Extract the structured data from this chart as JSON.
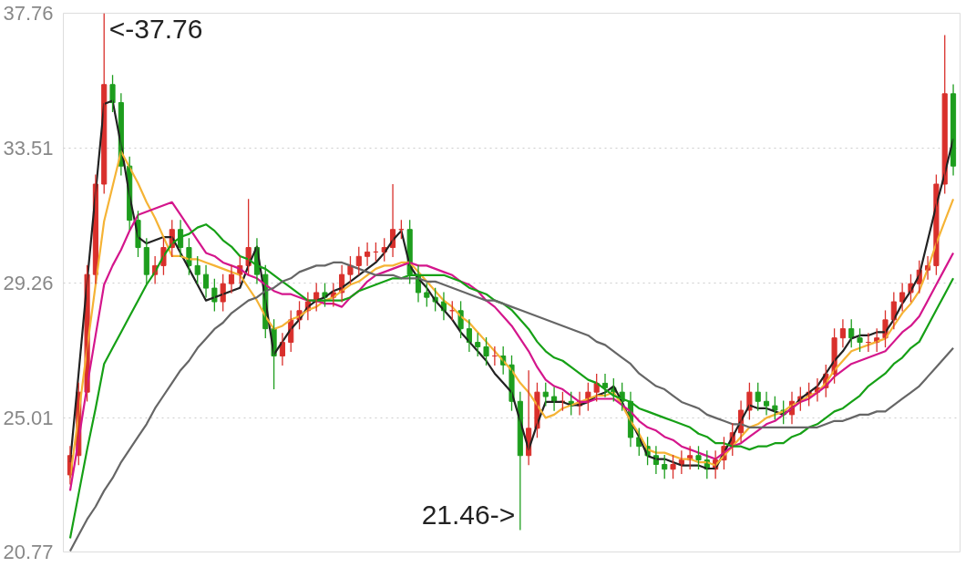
{
  "chart_data": {
    "type": "candlestick",
    "categories": [
      null,
      null,
      null,
      null,
      null,
      null,
      null,
      null,
      null,
      null,
      null,
      null,
      null,
      null,
      null,
      null,
      null,
      null,
      null,
      null,
      null,
      null,
      null,
      null,
      null,
      null,
      null,
      null,
      null,
      null,
      null,
      null,
      null,
      null,
      null,
      null,
      null,
      null,
      null,
      null,
      null,
      null,
      null,
      null,
      null,
      null,
      null,
      null,
      null,
      null,
      null,
      null,
      null,
      null,
      null,
      null,
      null,
      null,
      null,
      null,
      null,
      null,
      null,
      null,
      null,
      null,
      null,
      null,
      null,
      null,
      null,
      null,
      null,
      null,
      null,
      null,
      null,
      null,
      null,
      null,
      null,
      null,
      null,
      null,
      null,
      null,
      null,
      null,
      null,
      null,
      null,
      null,
      null,
      null,
      null,
      null,
      null,
      null,
      null,
      null,
      null,
      null,
      null,
      null,
      null
    ],
    "ohlc": [
      [
        23.2,
        24.11,
        22.9,
        23.81
      ],
      [
        23.81,
        26.11,
        23.51,
        25.81
      ],
      [
        25.81,
        29.82,
        25.51,
        29.52
      ],
      [
        29.52,
        32.67,
        29.22,
        32.37
      ],
      [
        32.37,
        37.76,
        32.07,
        35.51
      ],
      [
        35.51,
        35.81,
        34.64,
        34.94
      ],
      [
        34.94,
        35.24,
        32.64,
        32.94
      ],
      [
        32.94,
        33.24,
        30.93,
        31.23
      ],
      [
        31.23,
        31.53,
        30.07,
        30.37
      ],
      [
        30.37,
        30.67,
        29.22,
        29.52
      ],
      [
        29.52,
        30.1,
        29.22,
        29.8
      ],
      [
        29.8,
        30.67,
        29.5,
        30.37
      ],
      [
        30.37,
        31.24,
        30.07,
        30.94
      ],
      [
        30.94,
        31.24,
        30.07,
        30.37
      ],
      [
        30.37,
        30.67,
        29.5,
        29.8
      ],
      [
        29.8,
        30.1,
        29.22,
        29.52
      ],
      [
        29.52,
        29.82,
        28.79,
        29.09
      ],
      [
        29.09,
        29.39,
        28.36,
        28.66
      ],
      [
        28.66,
        29.53,
        28.36,
        29.23
      ],
      [
        29.23,
        29.82,
        28.93,
        29.52
      ],
      [
        29.52,
        30.1,
        29.22,
        29.8
      ],
      [
        29.8,
        31.9,
        29.5,
        30.37
      ],
      [
        30.37,
        30.67,
        29.22,
        29.52
      ],
      [
        29.52,
        29.82,
        27.51,
        27.81
      ],
      [
        27.81,
        28.11,
        25.9,
        26.95
      ],
      [
        26.95,
        27.68,
        26.65,
        27.38
      ],
      [
        27.38,
        28.39,
        27.08,
        28.09
      ],
      [
        28.09,
        28.68,
        27.79,
        28.38
      ],
      [
        28.38,
        28.96,
        28.08,
        28.66
      ],
      [
        28.66,
        29.25,
        28.36,
        28.95
      ],
      [
        28.95,
        29.25,
        28.5,
        28.8
      ],
      [
        28.8,
        29.25,
        28.5,
        28.95
      ],
      [
        28.95,
        29.82,
        28.65,
        29.52
      ],
      [
        29.52,
        30.1,
        29.22,
        29.8
      ],
      [
        29.8,
        30.39,
        29.5,
        30.09
      ],
      [
        30.09,
        30.53,
        29.79,
        30.23
      ],
      [
        30.23,
        30.53,
        29.93,
        30.23
      ],
      [
        30.23,
        30.67,
        29.93,
        30.37
      ],
      [
        30.37,
        32.37,
        30.07,
        30.94
      ],
      [
        30.94,
        31.24,
        30.64,
        30.94
      ],
      [
        30.94,
        31.24,
        29.22,
        29.52
      ],
      [
        29.52,
        29.82,
        28.65,
        28.95
      ],
      [
        28.95,
        29.25,
        28.5,
        28.8
      ],
      [
        28.8,
        29.1,
        28.36,
        28.66
      ],
      [
        28.66,
        28.96,
        28.08,
        28.38
      ],
      [
        28.38,
        28.68,
        28.08,
        28.38
      ],
      [
        28.38,
        28.68,
        27.51,
        27.81
      ],
      [
        27.81,
        28.11,
        27.08,
        27.38
      ],
      [
        27.38,
        27.68,
        26.94,
        27.24
      ],
      [
        27.24,
        27.54,
        26.65,
        26.95
      ],
      [
        26.95,
        27.25,
        26.65,
        26.95
      ],
      [
        26.95,
        27.25,
        26.37,
        26.67
      ],
      [
        26.67,
        26.97,
        25.22,
        25.52
      ],
      [
        25.52,
        25.82,
        21.46,
        23.81
      ],
      [
        23.81,
        26.5,
        23.51,
        24.67
      ],
      [
        24.67,
        26.11,
        24.37,
        25.81
      ],
      [
        25.81,
        26.11,
        25.37,
        25.67
      ],
      [
        25.67,
        25.97,
        25.22,
        25.52
      ],
      [
        25.52,
        25.82,
        25.22,
        25.52
      ],
      [
        25.52,
        25.82,
        25.08,
        25.38
      ],
      [
        25.38,
        25.82,
        25.08,
        25.52
      ],
      [
        25.52,
        26.11,
        25.22,
        25.81
      ],
      [
        25.81,
        26.39,
        25.51,
        26.09
      ],
      [
        26.09,
        26.39,
        25.65,
        25.95
      ],
      [
        25.95,
        26.25,
        25.51,
        25.81
      ],
      [
        25.81,
        26.11,
        25.22,
        25.52
      ],
      [
        25.52,
        25.82,
        24.08,
        24.38
      ],
      [
        24.38,
        24.68,
        23.8,
        24.1
      ],
      [
        24.1,
        24.4,
        23.51,
        23.81
      ],
      [
        23.81,
        24.11,
        23.23,
        23.53
      ],
      [
        23.53,
        23.83,
        23.08,
        23.38
      ],
      [
        23.38,
        23.83,
        23.08,
        23.53
      ],
      [
        23.53,
        23.97,
        23.23,
        23.67
      ],
      [
        23.67,
        24.11,
        23.37,
        23.81
      ],
      [
        23.81,
        24.11,
        23.37,
        23.67
      ],
      [
        23.67,
        23.97,
        23.08,
        23.38
      ],
      [
        23.38,
        23.97,
        23.08,
        23.67
      ],
      [
        23.67,
        24.4,
        23.37,
        24.1
      ],
      [
        24.1,
        24.83,
        23.8,
        24.53
      ],
      [
        24.53,
        25.54,
        24.23,
        25.24
      ],
      [
        25.24,
        26.11,
        24.94,
        25.81
      ],
      [
        25.81,
        26.11,
        25.22,
        25.52
      ],
      [
        25.52,
        25.82,
        25.08,
        25.38
      ],
      [
        25.38,
        25.68,
        24.94,
        25.24
      ],
      [
        25.24,
        25.54,
        24.8,
        25.1
      ],
      [
        25.1,
        25.82,
        24.8,
        25.52
      ],
      [
        25.52,
        25.97,
        25.22,
        25.67
      ],
      [
        25.67,
        26.11,
        25.37,
        25.81
      ],
      [
        25.81,
        26.25,
        25.51,
        25.95
      ],
      [
        25.95,
        26.68,
        25.65,
        26.38
      ],
      [
        26.38,
        27.82,
        26.08,
        27.52
      ],
      [
        27.52,
        28.11,
        27.22,
        27.81
      ],
      [
        27.81,
        28.11,
        27.22,
        27.52
      ],
      [
        27.52,
        27.82,
        27.08,
        27.38
      ],
      [
        27.38,
        27.68,
        27.08,
        27.38
      ],
      [
        27.38,
        27.82,
        27.08,
        27.52
      ],
      [
        27.52,
        28.39,
        27.22,
        28.09
      ],
      [
        28.09,
        28.96,
        27.79,
        28.66
      ],
      [
        28.66,
        29.25,
        28.36,
        28.95
      ],
      [
        28.95,
        29.53,
        28.65,
        29.23
      ],
      [
        29.23,
        29.96,
        28.93,
        29.66
      ],
      [
        29.66,
        30.1,
        29.36,
        29.8
      ],
      [
        29.8,
        32.67,
        29.5,
        32.37
      ],
      [
        32.37,
        37.07,
        32.07,
        35.22
      ],
      [
        35.22,
        35.52,
        32.64,
        32.94
      ]
    ],
    "colors": [
      "#d9302c",
      "#d9302c",
      "#d9302c",
      "#d9302c",
      "#d9302c",
      "#1e9e1e",
      "#1e9e1e",
      "#1e9e1e",
      "#1e9e1e",
      "#1e9e1e",
      "#d9302c",
      "#d9302c",
      "#d9302c",
      "#1e9e1e",
      "#1e9e1e",
      "#1e9e1e",
      "#1e9e1e",
      "#1e9e1e",
      "#d9302c",
      "#d9302c",
      "#d9302c",
      "#d9302c",
      "#1e9e1e",
      "#1e9e1e",
      "#1e9e1e",
      "#d9302c",
      "#d9302c",
      "#d9302c",
      "#d9302c",
      "#d9302c",
      "#1e9e1e",
      "#d9302c",
      "#d9302c",
      "#d9302c",
      "#d9302c",
      "#d9302c",
      "#d9302c",
      "#d9302c",
      "#d9302c",
      "#d9302c",
      "#1e9e1e",
      "#1e9e1e",
      "#1e9e1e",
      "#1e9e1e",
      "#1e9e1e",
      "#d9302c",
      "#1e9e1e",
      "#1e9e1e",
      "#1e9e1e",
      "#1e9e1e",
      "#d9302c",
      "#1e9e1e",
      "#1e9e1e",
      "#1e9e1e",
      "#d9302c",
      "#d9302c",
      "#1e9e1e",
      "#1e9e1e",
      "#d9302c",
      "#1e9e1e",
      "#d9302c",
      "#d9302c",
      "#d9302c",
      "#1e9e1e",
      "#1e9e1e",
      "#1e9e1e",
      "#1e9e1e",
      "#1e9e1e",
      "#1e9e1e",
      "#1e9e1e",
      "#1e9e1e",
      "#d9302c",
      "#d9302c",
      "#d9302c",
      "#1e9e1e",
      "#1e9e1e",
      "#d9302c",
      "#d9302c",
      "#d9302c",
      "#d9302c",
      "#d9302c",
      "#1e9e1e",
      "#1e9e1e",
      "#1e9e1e",
      "#1e9e1e",
      "#d9302c",
      "#d9302c",
      "#d9302c",
      "#d9302c",
      "#d9302c",
      "#d9302c",
      "#d9302c",
      "#1e9e1e",
      "#1e9e1e",
      "#d9302c",
      "#d9302c",
      "#d9302c",
      "#d9302c",
      "#d9302c",
      "#d9302c",
      "#d9302c",
      "#d9302c",
      "#d9302c",
      "#d9302c",
      "#1e9e1e"
    ],
    "series": [
      {
        "type": "line",
        "color": "#222222",
        "values": [
          23.6,
          26.4,
          29.3,
          32.1,
          34.9,
          35.0,
          33.6,
          32.0,
          30.7,
          30.5,
          30.6,
          30.7,
          30.7,
          30.2,
          29.7,
          29.2,
          28.7,
          28.8,
          28.9,
          29.0,
          29.1,
          29.8,
          30.4,
          28.7,
          27.0,
          27.4,
          27.8,
          28.1,
          28.5,
          28.7,
          28.8,
          29.0,
          29.1,
          29.3,
          29.5,
          29.7,
          29.9,
          30.2,
          30.6,
          30.9,
          29.8,
          29.4,
          29.1,
          28.7,
          28.4,
          28.1,
          27.7,
          27.4,
          27.1,
          26.8,
          26.4,
          26.1,
          25.8,
          24.9,
          24.0,
          24.8,
          25.5,
          25.5,
          25.5,
          25.4,
          25.4,
          25.5,
          25.7,
          25.8,
          26.0,
          25.5,
          24.9,
          24.4,
          23.8,
          23.7,
          23.7,
          23.6,
          23.5,
          23.5,
          23.5,
          23.4,
          23.4,
          23.9,
          24.4,
          24.9,
          25.4,
          25.3,
          25.3,
          25.2,
          25.1,
          25.3,
          25.6,
          25.8,
          26.0,
          26.4,
          26.8,
          27.1,
          27.5,
          27.6,
          27.6,
          27.7,
          27.7,
          28.1,
          28.6,
          29.0,
          29.5,
          30.6,
          31.7,
          32.7,
          33.8
        ]
      },
      {
        "type": "line",
        "color": "#f5b335",
        "values": [
          23.1,
          25.1,
          27.2,
          29.2,
          31.2,
          32.3,
          33.4,
          32.9,
          32.4,
          31.8,
          31.3,
          30.7,
          30.1,
          30.1,
          30.0,
          30.0,
          29.9,
          29.8,
          29.7,
          29.6,
          29.5,
          29.1,
          28.7,
          28.2,
          27.8,
          27.9,
          28.1,
          28.2,
          28.4,
          28.5,
          28.7,
          28.8,
          29.0,
          29.2,
          29.3,
          29.5,
          29.7,
          29.8,
          29.8,
          29.9,
          29.9,
          29.6,
          29.3,
          29.0,
          28.7,
          28.5,
          28.2,
          28.0,
          27.7,
          27.4,
          27.1,
          26.8,
          26.5,
          26.1,
          25.8,
          25.4,
          25.0,
          25.1,
          25.3,
          25.4,
          25.5,
          25.6,
          25.7,
          25.7,
          25.8,
          25.4,
          24.9,
          24.5,
          24.0,
          23.9,
          23.9,
          23.8,
          23.7,
          23.7,
          23.6,
          23.6,
          23.5,
          23.8,
          24.1,
          24.4,
          24.7,
          24.8,
          25.0,
          25.1,
          25.2,
          25.4,
          25.5,
          25.7,
          25.8,
          26.1,
          26.5,
          26.8,
          27.1,
          27.2,
          27.3,
          27.4,
          27.5,
          27.9,
          28.3,
          28.6,
          29.0,
          29.7,
          30.5,
          31.2,
          31.9
        ]
      },
      {
        "type": "line",
        "color": "#d4168c",
        "values": [
          22.7,
          24.3,
          26.0,
          27.6,
          29.2,
          29.8,
          30.3,
          30.9,
          31.4,
          31.5,
          31.6,
          31.7,
          31.8,
          31.4,
          31.0,
          30.6,
          30.2,
          30.1,
          29.9,
          29.8,
          29.7,
          29.5,
          29.4,
          29.2,
          29.0,
          28.9,
          28.9,
          28.8,
          28.7,
          28.7,
          28.6,
          28.6,
          28.5,
          28.8,
          29.0,
          29.3,
          29.5,
          29.6,
          29.7,
          29.8,
          29.9,
          29.8,
          29.8,
          29.7,
          29.6,
          29.5,
          29.3,
          29.2,
          29.0,
          28.7,
          28.5,
          28.2,
          27.9,
          27.5,
          27.1,
          26.6,
          26.2,
          26.0,
          25.9,
          25.7,
          25.5,
          25.5,
          25.6,
          25.6,
          25.6,
          25.4,
          25.2,
          24.9,
          24.7,
          24.6,
          24.4,
          24.3,
          24.1,
          24.0,
          23.9,
          23.8,
          23.7,
          23.9,
          24.1,
          24.2,
          24.4,
          24.6,
          24.8,
          24.9,
          25.1,
          25.3,
          25.5,
          25.6,
          25.8,
          26.0,
          26.3,
          26.5,
          26.7,
          26.8,
          26.9,
          27.0,
          27.1,
          27.4,
          27.7,
          27.9,
          28.2,
          28.7,
          29.2,
          29.7,
          30.2
        ]
      },
      {
        "type": "line",
        "color": "#16a016",
        "values": [
          21.2,
          22.6,
          24.0,
          25.3,
          26.7,
          27.2,
          27.7,
          28.2,
          28.7,
          29.2,
          29.6,
          30.1,
          30.5,
          30.7,
          30.8,
          31.0,
          31.1,
          30.9,
          30.6,
          30.4,
          30.1,
          30.0,
          29.8,
          29.7,
          29.5,
          29.3,
          29.1,
          28.9,
          28.7,
          28.7,
          28.7,
          28.7,
          28.7,
          28.8,
          29.0,
          29.1,
          29.2,
          29.3,
          29.4,
          29.4,
          29.5,
          29.5,
          29.5,
          29.5,
          29.5,
          29.4,
          29.3,
          29.1,
          29.0,
          28.9,
          28.7,
          28.6,
          28.4,
          28.1,
          27.8,
          27.4,
          27.1,
          26.9,
          26.8,
          26.6,
          26.4,
          26.2,
          26.1,
          25.9,
          25.7,
          25.6,
          25.5,
          25.3,
          25.2,
          25.1,
          25.0,
          24.9,
          24.8,
          24.7,
          24.5,
          24.4,
          24.2,
          24.2,
          24.1,
          24.1,
          24.0,
          24.1,
          24.1,
          24.2,
          24.2,
          24.4,
          24.5,
          24.7,
          24.8,
          25.0,
          25.2,
          25.3,
          25.5,
          25.7,
          26.0,
          26.2,
          26.4,
          26.7,
          26.9,
          27.2,
          27.4,
          27.9,
          28.4,
          28.9,
          29.4
        ]
      },
      {
        "type": "line",
        "color": "#666666",
        "values": [
          20.8,
          21.3,
          21.8,
          22.2,
          22.7,
          23.1,
          23.6,
          24.0,
          24.4,
          24.8,
          25.3,
          25.7,
          26.1,
          26.5,
          26.8,
          27.2,
          27.5,
          27.8,
          28.0,
          28.3,
          28.5,
          28.7,
          28.8,
          29.0,
          29.1,
          29.3,
          29.4,
          29.6,
          29.7,
          29.8,
          29.8,
          29.9,
          29.9,
          29.8,
          29.7,
          29.6,
          29.5,
          29.5,
          29.5,
          29.4,
          29.4,
          29.4,
          29.3,
          29.3,
          29.2,
          29.1,
          29.0,
          28.9,
          28.8,
          28.7,
          28.7,
          28.6,
          28.5,
          28.4,
          28.3,
          28.2,
          28.1,
          28.0,
          27.9,
          27.8,
          27.7,
          27.6,
          27.4,
          27.3,
          27.1,
          26.9,
          26.7,
          26.4,
          26.2,
          26.0,
          25.9,
          25.7,
          25.5,
          25.4,
          25.3,
          25.1,
          25.0,
          24.9,
          24.8,
          24.8,
          24.7,
          24.7,
          24.7,
          24.7,
          24.7,
          24.7,
          24.7,
          24.7,
          24.7,
          24.8,
          24.9,
          24.9,
          25.0,
          25.1,
          25.1,
          25.2,
          25.2,
          25.4,
          25.6,
          25.8,
          26.0,
          26.3,
          26.6,
          26.9,
          27.2
        ]
      }
    ],
    "ylim": [
      20.77,
      37.76
    ],
    "yticks": [
      20.77,
      25.01,
      29.26,
      33.51,
      37.76
    ],
    "grid": "y",
    "tick_labels": "y",
    "annotations": [
      "<-37.76",
      "21.46->"
    ]
  }
}
